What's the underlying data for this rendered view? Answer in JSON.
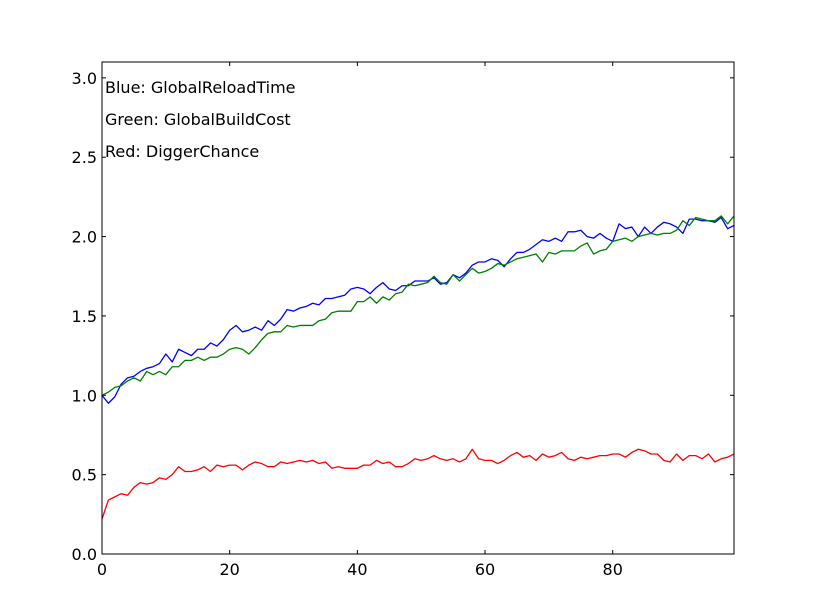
{
  "chart_data": {
    "type": "line",
    "title": "",
    "xlabel": "",
    "ylabel": "",
    "xlim": [
      0,
      99
    ],
    "ylim": [
      0.0,
      3.1
    ],
    "grid": false,
    "xticks": [
      0,
      20,
      40,
      60,
      80
    ],
    "xtick_labels": [
      "0",
      "20",
      "40",
      "60",
      "80"
    ],
    "yticks": [
      0.0,
      0.5,
      1.0,
      1.5,
      2.0,
      2.5,
      3.0
    ],
    "ytick_labels": [
      "0.0",
      "0.5",
      "1.0",
      "1.5",
      "2.0",
      "2.5",
      "3.0"
    ],
    "annotations": [
      "Blue: GlobalReloadTime",
      "Green: GlobalBuildCost",
      "Red: DiggerChance"
    ],
    "x": [
      0,
      1,
      2,
      3,
      4,
      5,
      6,
      7,
      8,
      9,
      10,
      11,
      12,
      13,
      14,
      15,
      16,
      17,
      18,
      19,
      20,
      21,
      22,
      23,
      24,
      25,
      26,
      27,
      28,
      29,
      30,
      31,
      32,
      33,
      34,
      35,
      36,
      37,
      38,
      39,
      40,
      41,
      42,
      43,
      44,
      45,
      46,
      47,
      48,
      49,
      50,
      51,
      52,
      53,
      54,
      55,
      56,
      57,
      58,
      59,
      60,
      61,
      62,
      63,
      64,
      65,
      66,
      67,
      68,
      69,
      70,
      71,
      72,
      73,
      74,
      75,
      76,
      77,
      78,
      79,
      80,
      81,
      82,
      83,
      84,
      85,
      86,
      87,
      88,
      89,
      90,
      91,
      92,
      93,
      94,
      95,
      96,
      97,
      98,
      99
    ],
    "series": [
      {
        "color": "#0000ff",
        "values": [
          1.0,
          0.95,
          0.99,
          1.07,
          1.11,
          1.12,
          1.15,
          1.17,
          1.18,
          1.2,
          1.26,
          1.21,
          1.29,
          1.27,
          1.25,
          1.29,
          1.29,
          1.33,
          1.31,
          1.35,
          1.41,
          1.44,
          1.4,
          1.41,
          1.43,
          1.41,
          1.47,
          1.44,
          1.48,
          1.54,
          1.53,
          1.55,
          1.56,
          1.58,
          1.57,
          1.61,
          1.61,
          1.62,
          1.63,
          1.67,
          1.68,
          1.67,
          1.64,
          1.68,
          1.71,
          1.67,
          1.66,
          1.69,
          1.69,
          1.72,
          1.72,
          1.72,
          1.74,
          1.7,
          1.71,
          1.76,
          1.74,
          1.77,
          1.82,
          1.84,
          1.84,
          1.86,
          1.85,
          1.81,
          1.86,
          1.9,
          1.9,
          1.92,
          1.95,
          1.98,
          1.97,
          1.99,
          1.97,
          2.03,
          2.03,
          2.04,
          2.0,
          1.99,
          2.02,
          1.99,
          1.97,
          2.08,
          2.05,
          2.06,
          2.0,
          2.06,
          2.02,
          2.06,
          2.09,
          2.08,
          2.06,
          2.02,
          2.11,
          2.11,
          2.1,
          2.1,
          2.09,
          2.12,
          2.05,
          2.07
        ]
      },
      {
        "color": "#008000",
        "values": [
          1.0,
          1.02,
          1.05,
          1.06,
          1.09,
          1.11,
          1.09,
          1.15,
          1.13,
          1.15,
          1.13,
          1.18,
          1.18,
          1.22,
          1.22,
          1.24,
          1.22,
          1.24,
          1.24,
          1.26,
          1.29,
          1.3,
          1.29,
          1.26,
          1.3,
          1.35,
          1.39,
          1.4,
          1.4,
          1.44,
          1.43,
          1.44,
          1.44,
          1.44,
          1.47,
          1.48,
          1.52,
          1.53,
          1.53,
          1.53,
          1.59,
          1.59,
          1.62,
          1.58,
          1.62,
          1.6,
          1.64,
          1.65,
          1.7,
          1.69,
          1.7,
          1.71,
          1.75,
          1.71,
          1.7,
          1.76,
          1.72,
          1.76,
          1.8,
          1.77,
          1.78,
          1.8,
          1.83,
          1.82,
          1.84,
          1.86,
          1.87,
          1.88,
          1.89,
          1.84,
          1.9,
          1.89,
          1.91,
          1.91,
          1.91,
          1.94,
          1.96,
          1.89,
          1.91,
          1.92,
          1.97,
          1.98,
          1.99,
          1.97,
          2.0,
          2.01,
          2.02,
          2.01,
          2.02,
          2.02,
          2.04,
          2.1,
          2.07,
          2.12,
          2.11,
          2.1,
          2.1,
          2.13,
          2.08,
          2.13
        ]
      },
      {
        "color": "#ff0000",
        "values": [
          0.22,
          0.34,
          0.36,
          0.38,
          0.37,
          0.42,
          0.45,
          0.44,
          0.45,
          0.48,
          0.47,
          0.5,
          0.55,
          0.52,
          0.52,
          0.53,
          0.55,
          0.52,
          0.56,
          0.55,
          0.56,
          0.56,
          0.53,
          0.56,
          0.58,
          0.57,
          0.55,
          0.55,
          0.58,
          0.57,
          0.58,
          0.59,
          0.58,
          0.59,
          0.57,
          0.58,
          0.54,
          0.55,
          0.54,
          0.54,
          0.54,
          0.56,
          0.56,
          0.59,
          0.57,
          0.58,
          0.55,
          0.55,
          0.57,
          0.6,
          0.59,
          0.6,
          0.62,
          0.6,
          0.59,
          0.6,
          0.58,
          0.6,
          0.66,
          0.6,
          0.59,
          0.59,
          0.57,
          0.59,
          0.62,
          0.64,
          0.61,
          0.62,
          0.59,
          0.63,
          0.61,
          0.62,
          0.64,
          0.6,
          0.59,
          0.61,
          0.6,
          0.61,
          0.62,
          0.62,
          0.63,
          0.63,
          0.61,
          0.64,
          0.66,
          0.65,
          0.63,
          0.63,
          0.59,
          0.58,
          0.63,
          0.59,
          0.62,
          0.62,
          0.6,
          0.63,
          0.58,
          0.6,
          0.61,
          0.63
        ]
      }
    ]
  }
}
